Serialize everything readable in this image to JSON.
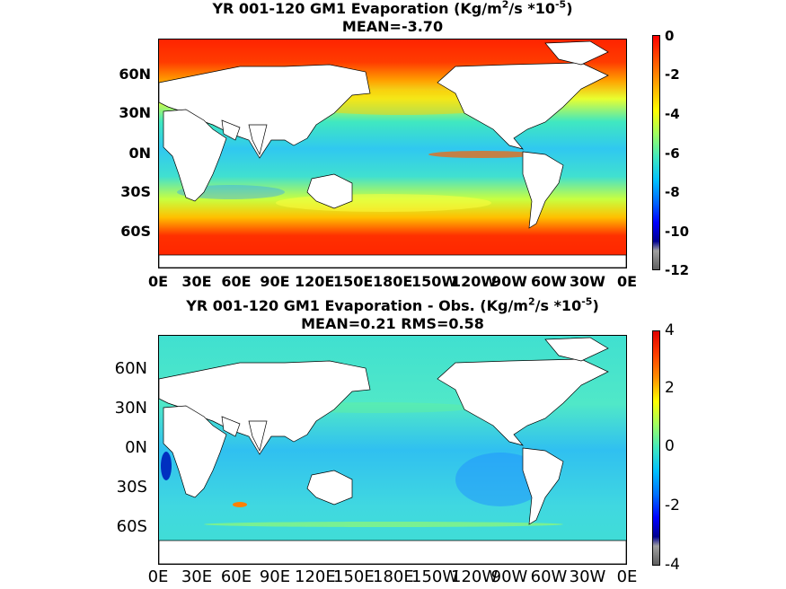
{
  "panel1": {
    "title_pre": "YR 001-120 GM1  Evaporation (Kg/m",
    "title_sup1": "2",
    "title_mid": "/s *10",
    "title_sup2": "-5",
    "title_post": ")",
    "subtitle": "MEAN=-3.70",
    "lat_labels": [
      "60N",
      "30N",
      "0N",
      "30S",
      "60S"
    ],
    "lon_labels": [
      "0E",
      "30E",
      "60E",
      "90E",
      "120E",
      "150E",
      "180E",
      "150W",
      "120W",
      "90W",
      "60W",
      "30W",
      "0E"
    ],
    "colorbar_ticks": [
      "0",
      "-2",
      "-4",
      "-6",
      "-8",
      "-10",
      "-12"
    ],
    "colorbar_range": [
      -12,
      0
    ]
  },
  "panel2": {
    "title_pre": "YR 001-120 GM1 Evaporation - Obs. (Kg/m",
    "title_sup1": "2",
    "title_mid": "/s *10",
    "title_sup2": "-5",
    "title_post": ")",
    "subtitle": "MEAN=0.21   RMS=0.58",
    "lat_labels": [
      "60N",
      "30N",
      "0N",
      "30S",
      "60S"
    ],
    "lon_labels": [
      "0E",
      "30E",
      "60E",
      "90E",
      "120E",
      "150E",
      "180E",
      "150W",
      "120W",
      "90W",
      "60W",
      "30W",
      "0E"
    ],
    "colorbar_ticks": [
      "4",
      "2",
      "0",
      "-2",
      "-4"
    ],
    "colorbar_range": [
      -4,
      4
    ]
  },
  "colors": {
    "ocean_cyan": "#40e0d0",
    "land": "#ffffff",
    "red": "#ff2000",
    "orange": "#ff8c00",
    "yellow": "#ffff00",
    "blue": "#0080ff",
    "dark_blue": "#0000a0",
    "grey": "#888888"
  }
}
